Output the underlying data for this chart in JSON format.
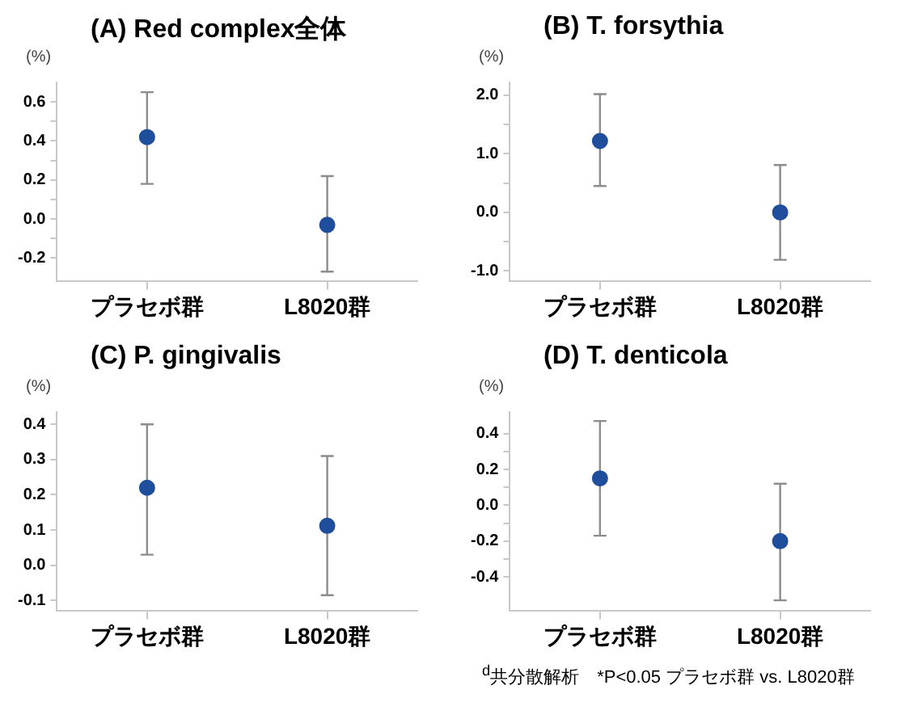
{
  "chart_data": [
    {
      "type": "scatter",
      "title": "(A) Red complex全体",
      "ylabel": "(%)",
      "categories": [
        "プラセボ群",
        "L8020群"
      ],
      "values": [
        0.42,
        -0.03
      ],
      "errors": [
        [
          0.18,
          0.65
        ],
        [
          -0.27,
          0.22
        ]
      ],
      "color": "#1f4e9c",
      "marker": "circle",
      "ylim": [
        -0.32,
        0.7
      ],
      "yticks": [
        {
          "value": -0.2,
          "label": "-0.2"
        },
        {
          "value": -0.1,
          "label": null
        },
        {
          "value": 0,
          "label": "0.0"
        },
        {
          "value": 0.1,
          "label": null
        },
        {
          "value": 0.2,
          "label": "0.2"
        },
        {
          "value": 0.3,
          "label": null
        },
        {
          "value": 0.4,
          "label": "0.4"
        },
        {
          "value": 0.5,
          "label": null
        },
        {
          "value": 0.6,
          "label": "0.6"
        }
      ]
    },
    {
      "type": "scatter",
      "title": "(B) T. forsythia",
      "ylabel": "(%)",
      "categories": [
        "プラセボ群",
        "L8020群"
      ],
      "values": [
        1.22,
        0.0
      ],
      "errors": [
        [
          0.45,
          2.02
        ],
        [
          -0.81,
          0.81
        ]
      ],
      "color": "#1f4e9c",
      "marker": "circle",
      "ylim": [
        -1.18,
        2.22
      ],
      "yticks": [
        {
          "value": -1,
          "label": "-1.0"
        },
        {
          "value": -0.5,
          "label": null
        },
        {
          "value": 0,
          "label": "0.0"
        },
        {
          "value": 0.5,
          "label": null
        },
        {
          "value": 1,
          "label": "1.0"
        },
        {
          "value": 1.5,
          "label": null
        },
        {
          "value": 2,
          "label": "2.0"
        }
      ]
    },
    {
      "type": "scatter",
      "title": "(C) P. gingivalis",
      "ylabel": "(%)",
      "categories": [
        "プラセボ群",
        "L8020群"
      ],
      "values": [
        0.22,
        0.112
      ],
      "errors": [
        [
          0.03,
          0.4
        ],
        [
          -0.085,
          0.31
        ]
      ],
      "color": "#1f4e9c",
      "marker": "circle",
      "ylim": [
        -0.13,
        0.435
      ],
      "yticks": [
        {
          "value": -0.1,
          "label": "-0.1"
        },
        {
          "value": 0,
          "label": "0.0"
        },
        {
          "value": 0.1,
          "label": "0.1"
        },
        {
          "value": 0.2,
          "label": "0.2"
        },
        {
          "value": 0.3,
          "label": "0.3"
        },
        {
          "value": 0.4,
          "label": "0.4"
        }
      ]
    },
    {
      "type": "scatter",
      "title": "(D) T. denticola",
      "ylabel": "(%)",
      "categories": [
        "プラセボ群",
        "L8020群"
      ],
      "values": [
        0.15,
        -0.2
      ],
      "errors": [
        [
          -0.17,
          0.47
        ],
        [
          -0.53,
          0.12
        ]
      ],
      "color": "#1f4e9c",
      "marker": "circle",
      "ylim": [
        -0.59,
        0.52
      ],
      "yticks": [
        {
          "value": -0.4,
          "label": "-0.4"
        },
        {
          "value": -0.3,
          "label": null
        },
        {
          "value": -0.2,
          "label": "-0.2"
        },
        {
          "value": -0.1,
          "label": null
        },
        {
          "value": 0,
          "label": "0.0"
        },
        {
          "value": 0.1,
          "label": null
        },
        {
          "value": 0.2,
          "label": "0.2"
        },
        {
          "value": 0.3,
          "label": null
        },
        {
          "value": 0.4,
          "label": "0.4"
        }
      ],
      "annotations": [
        "$^{d}$共分散解析　*P<0.05 プラセボ群 vs. L8020群"
      ]
    }
  ]
}
